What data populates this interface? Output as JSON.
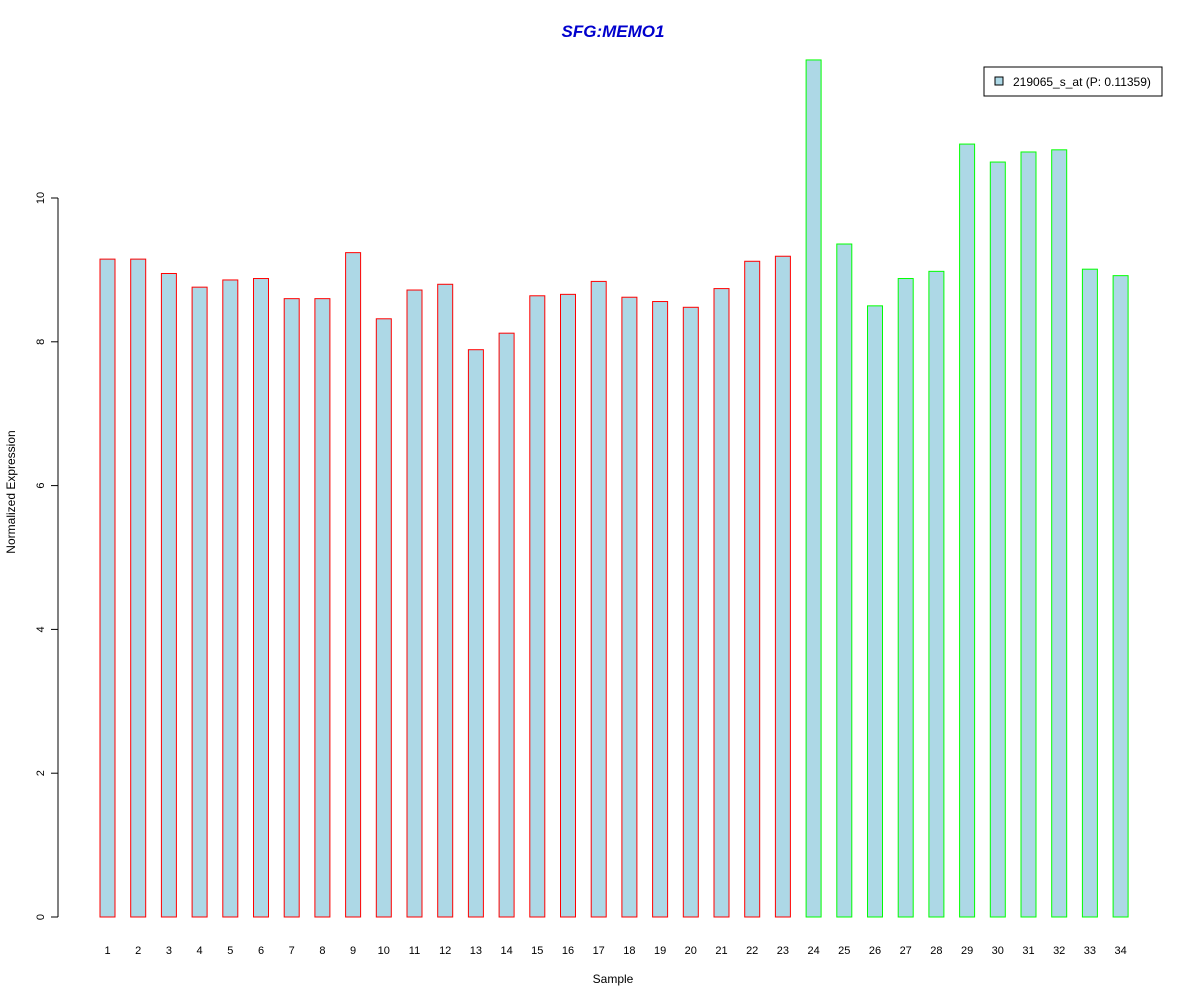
{
  "chart_data": {
    "type": "bar",
    "title": "SFG:MEMO1",
    "xlabel": "Sample",
    "ylabel": "Normalized Expression",
    "ylim": [
      0,
      12
    ],
    "yticks": [
      0,
      2,
      4,
      6,
      8,
      10
    ],
    "grid": false,
    "legend_position": "top-right",
    "categories": [
      "1",
      "2",
      "3",
      "4",
      "5",
      "6",
      "7",
      "8",
      "9",
      "10",
      "11",
      "12",
      "13",
      "14",
      "15",
      "16",
      "17",
      "18",
      "19",
      "20",
      "21",
      "22",
      "23",
      "24",
      "25",
      "26",
      "27",
      "28",
      "29",
      "30",
      "31",
      "32",
      "33",
      "34"
    ],
    "series": [
      {
        "name": "219065_s_at (P: 0.11359)",
        "values": [
          9.15,
          9.15,
          8.95,
          8.76,
          8.86,
          8.88,
          8.6,
          8.6,
          9.24,
          8.32,
          8.72,
          8.8,
          7.89,
          8.12,
          8.64,
          8.66,
          8.84,
          8.62,
          8.56,
          8.48,
          8.74,
          9.12,
          9.19,
          11.92,
          9.36,
          8.5,
          8.88,
          8.98,
          10.75,
          10.5,
          10.64,
          10.67,
          9.01,
          8.92
        ],
        "groups": [
          "a",
          "a",
          "a",
          "a",
          "a",
          "a",
          "a",
          "a",
          "a",
          "a",
          "a",
          "a",
          "a",
          "a",
          "a",
          "a",
          "a",
          "a",
          "a",
          "a",
          "a",
          "a",
          "a",
          "b",
          "b",
          "b",
          "b",
          "b",
          "b",
          "b",
          "b",
          "b",
          "b",
          "b"
        ]
      }
    ],
    "colors": {
      "fill": "#add8e6",
      "group_a_border": "#ff0000",
      "group_b_border": "#00ff00",
      "title": "#0000cd",
      "axis": "#000000"
    }
  }
}
